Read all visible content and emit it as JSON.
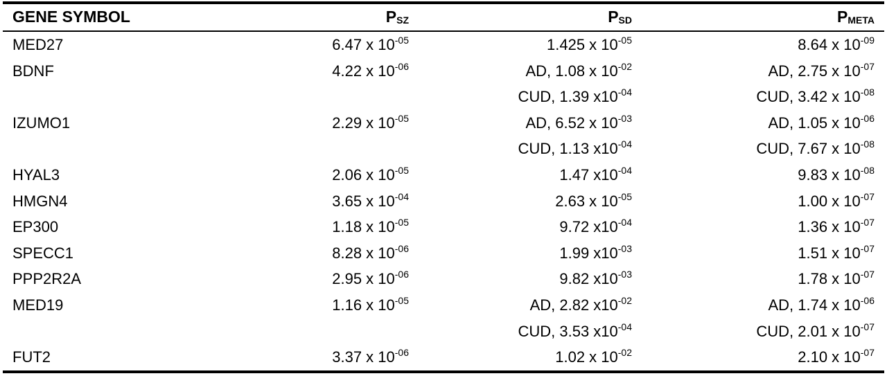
{
  "header": {
    "gene": "GENE SYMBOL",
    "psz": {
      "base": "P",
      "sub": "SZ"
    },
    "psd": {
      "base": "P",
      "sub": "SD"
    },
    "pmeta": {
      "base": "P",
      "sub": "META"
    }
  },
  "rows": [
    {
      "gene": "MED27",
      "psz": {
        "base": "6.47 x 10",
        "exp": "-05"
      },
      "psd": [
        {
          "base": "1.425 x 10",
          "exp": "-05"
        }
      ],
      "pmeta": [
        {
          "base": "8.64 x 10",
          "exp": "-09"
        }
      ]
    },
    {
      "gene": "BDNF",
      "psz": {
        "base": "4.22 x 10",
        "exp": "-06"
      },
      "psd": [
        {
          "base": "AD, 1.08 x 10",
          "exp": "-02"
        },
        {
          "base": "CUD, 1.39 x10",
          "exp": "-04"
        }
      ],
      "pmeta": [
        {
          "base": "AD, 2.75 x 10",
          "exp": "-07"
        },
        {
          "base": "CUD, 3.42 x 10",
          "exp": "-08"
        }
      ]
    },
    {
      "gene": "IZUMO1",
      "psz": {
        "base": "2.29 x 10",
        "exp": "-05"
      },
      "psd": [
        {
          "base": "AD, 6.52 x 10",
          "exp": "-03"
        },
        {
          "base": "CUD, 1.13 x10",
          "exp": "-04"
        }
      ],
      "pmeta": [
        {
          "base": "AD, 1.05 x 10",
          "exp": "-06"
        },
        {
          "base": "CUD, 7.67 x 10",
          "exp": "-08"
        }
      ]
    },
    {
      "gene": "HYAL3",
      "psz": {
        "base": "2.06 x 10",
        "exp": "-05"
      },
      "psd": [
        {
          "base": "1.47 x10",
          "exp": "-04"
        }
      ],
      "pmeta": [
        {
          "base": "9.83 x 10",
          "exp": "-08"
        }
      ]
    },
    {
      "gene": "HMGN4",
      "psz": {
        "base": "3.65 x 10",
        "exp": "-04"
      },
      "psd": [
        {
          "base": "2.63 x 10",
          "exp": "-05"
        }
      ],
      "pmeta": [
        {
          "base": "1.00 x 10",
          "exp": "-07"
        }
      ]
    },
    {
      "gene": "EP300",
      "psz": {
        "base": "1.18 x 10",
        "exp": "-05"
      },
      "psd": [
        {
          "base": "9.72 x10",
          "exp": "-04"
        }
      ],
      "pmeta": [
        {
          "base": "1.36 x 10",
          "exp": "-07"
        }
      ]
    },
    {
      "gene": "SPECC1",
      "psz": {
        "base": "8.28 x 10",
        "exp": "-06"
      },
      "psd": [
        {
          "base": "1.99 x10",
          "exp": "-03"
        }
      ],
      "pmeta": [
        {
          "base": "1.51 x 10",
          "exp": "-07"
        }
      ]
    },
    {
      "gene": "PPP2R2A",
      "psz": {
        "base": "2.95 x 10",
        "exp": "-06"
      },
      "psd": [
        {
          "base": "9.82 x10",
          "exp": "-03"
        }
      ],
      "pmeta": [
        {
          "base": "1.78 x 10",
          "exp": "-07"
        }
      ]
    },
    {
      "gene": "MED19",
      "psz": {
        "base": "1.16 x 10",
        "exp": "-05"
      },
      "psd": [
        {
          "base": "AD, 2.82 x10",
          "exp": "-02"
        },
        {
          "base": "CUD, 3.53 x10",
          "exp": "-04"
        }
      ],
      "pmeta": [
        {
          "base": "AD, 1.74 x 10",
          "exp": "-06"
        },
        {
          "base": "CUD, 2.01 x 10",
          "exp": "-07"
        }
      ]
    },
    {
      "gene": "FUT2",
      "psz": {
        "base": "3.37 x 10",
        "exp": "-06"
      },
      "psd": [
        {
          "base": "1.02 x 10",
          "exp": "-02"
        }
      ],
      "pmeta": [
        {
          "base": "2.10 x 10",
          "exp": "-07"
        }
      ]
    }
  ]
}
